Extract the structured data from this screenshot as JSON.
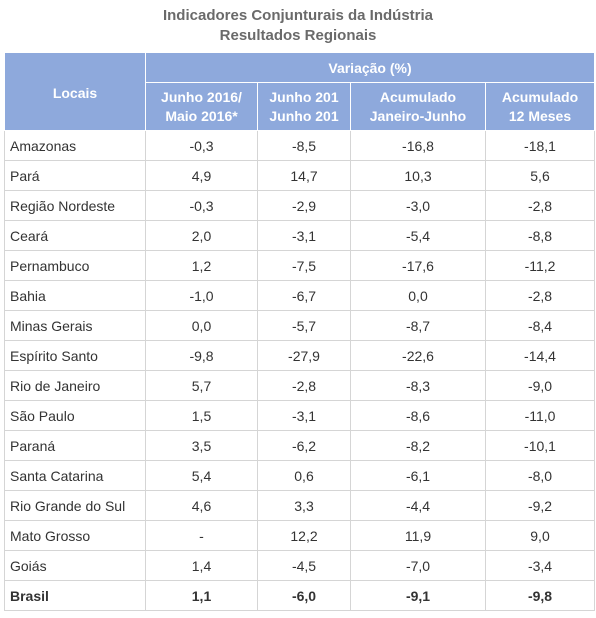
{
  "title_line1": "Indicadores Conjunturais da Indústria",
  "title_line2": "Resultados Regionais",
  "header": {
    "locais": "Locais",
    "group": "Variação (%)",
    "columns": [
      {
        "line1": "Junho 2016/",
        "line2": "Maio 2016*"
      },
      {
        "line1": "Junho 201",
        "line2": "Junho 201"
      },
      {
        "line1": "Acumulado",
        "line2": "Janeiro-Junho"
      },
      {
        "line1": "Acumulado",
        "line2": "12 Meses"
      }
    ]
  },
  "chart_data": {
    "type": "table",
    "title": "Indicadores Conjunturais da Indústria",
    "subtitle": "Resultados Regionais",
    "columns": [
      "Locais",
      "Junho 2016/ Maio 2016*",
      "Junho 201 Junho 201",
      "Acumulado Janeiro-Junho",
      "Acumulado 12 Meses"
    ],
    "rows": [
      {
        "local": "Amazonas",
        "values": [
          "-0,3",
          "-8,5",
          "-16,8",
          "-18,1"
        ]
      },
      {
        "local": "Pará",
        "values": [
          "4,9",
          "14,7",
          "10,3",
          "5,6"
        ]
      },
      {
        "local": "Região Nordeste",
        "values": [
          "-0,3",
          "-2,9",
          "-3,0",
          "-2,8"
        ]
      },
      {
        "local": "Ceará",
        "values": [
          "2,0",
          "-3,1",
          "-5,4",
          "-8,8"
        ]
      },
      {
        "local": "Pernambuco",
        "values": [
          "1,2",
          "-7,5",
          "-17,6",
          "-11,2"
        ]
      },
      {
        "local": "Bahia",
        "values": [
          "-1,0",
          "-6,7",
          "0,0",
          "-2,8"
        ]
      },
      {
        "local": "Minas Gerais",
        "values": [
          "0,0",
          "-5,7",
          "-8,7",
          "-8,4"
        ]
      },
      {
        "local": "Espírito Santo",
        "values": [
          "-9,8",
          "-27,9",
          "-22,6",
          "-14,4"
        ]
      },
      {
        "local": "Rio de Janeiro",
        "values": [
          "5,7",
          "-2,8",
          "-8,3",
          "-9,0"
        ]
      },
      {
        "local": "São Paulo",
        "values": [
          "1,5",
          "-3,1",
          "-8,6",
          "-11,0"
        ]
      },
      {
        "local": "Paraná",
        "values": [
          "3,5",
          "-6,2",
          "-8,2",
          "-10,1"
        ]
      },
      {
        "local": "Santa Catarina",
        "values": [
          "5,4",
          "0,6",
          "-6,1",
          "-8,0"
        ]
      },
      {
        "local": "Rio Grande do Sul",
        "values": [
          "4,6",
          "3,3",
          "-4,4",
          "-9,2"
        ]
      },
      {
        "local": "Mato Grosso",
        "values": [
          "-",
          "12,2",
          "11,9",
          "9,0"
        ]
      },
      {
        "local": "Goiás",
        "values": [
          "1,4",
          "-4,5",
          "-7,0",
          "-3,4"
        ]
      },
      {
        "local": "Brasil",
        "values": [
          "1,1",
          "-6,0",
          "-9,1",
          "-9,8"
        ],
        "bold": true
      }
    ]
  }
}
